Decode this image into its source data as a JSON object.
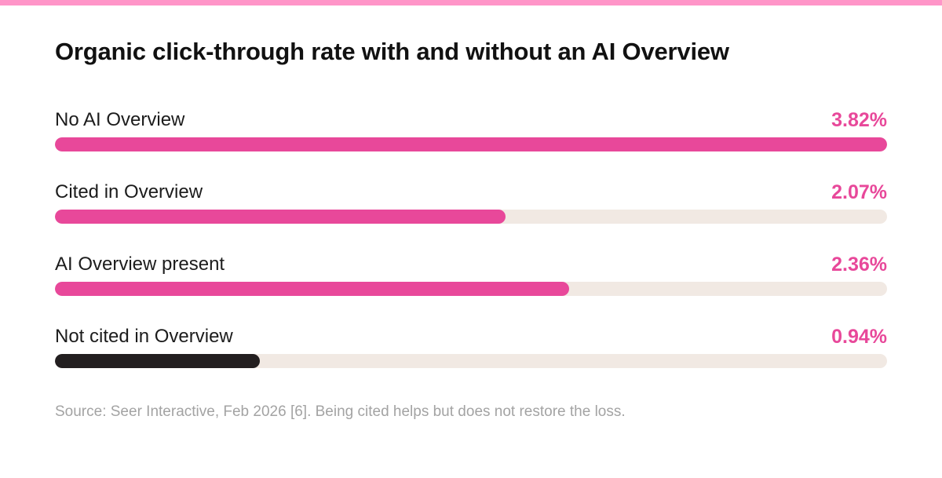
{
  "colors": {
    "stripe": "#ff95c8",
    "accent": "#e8489a",
    "dark_bar": "#231f20",
    "track": "#f1e9e3"
  },
  "chart_data": {
    "type": "bar",
    "orientation": "horizontal",
    "title": "Organic click-through rate with and without an AI Overview",
    "categories": [
      "No AI Overview",
      "Cited in Overview",
      "AI Overview present",
      "Not cited in Overview"
    ],
    "values": [
      3.82,
      2.07,
      2.36,
      0.94
    ],
    "value_labels": [
      "3.82%",
      "2.07%",
      "2.36%",
      "0.94%"
    ],
    "bar_colors": [
      "#e8489a",
      "#e8489a",
      "#e8489a",
      "#231f20"
    ],
    "xlim": [
      0,
      3.82
    ],
    "grid": false,
    "legend": "none"
  },
  "source": "Source: Seer Interactive, Feb 2026 [6]. Being cited helps but does not restore the loss."
}
